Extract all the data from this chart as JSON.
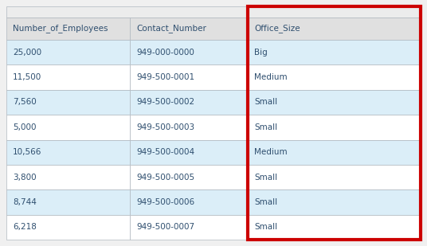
{
  "columns": [
    "Number_of_Employees",
    "Contact_Number",
    "Office_Size"
  ],
  "rows": [
    [
      "25,000",
      "949-000-0000",
      "Big"
    ],
    [
      "11,500",
      "949-500-0001",
      "Medium"
    ],
    [
      "7,560",
      "949-500-0002",
      "Small"
    ],
    [
      "5,000",
      "949-500-0003",
      "Small"
    ],
    [
      "10,566",
      "949-500-0004",
      "Medium"
    ],
    [
      "3,800",
      "949-500-0005",
      "Small"
    ],
    [
      "8,744",
      "949-500-0006",
      "Small"
    ],
    [
      "6,218",
      "949-500-0007",
      "Small"
    ]
  ],
  "header_bg": "#e0e0e0",
  "row_bg_even": "#dbeef8",
  "row_bg_odd": "#ffffff",
  "text_color": "#2f4f6f",
  "header_text_color": "#2f4f6f",
  "border_color": "#b0b8c0",
  "highlight_border_color": "#cc0000",
  "highlight_col_index": 2,
  "top_bar_bg": "#ececec",
  "fig_bg": "#f0f0f0",
  "font_size": 7.5,
  "header_font_size": 7.5
}
